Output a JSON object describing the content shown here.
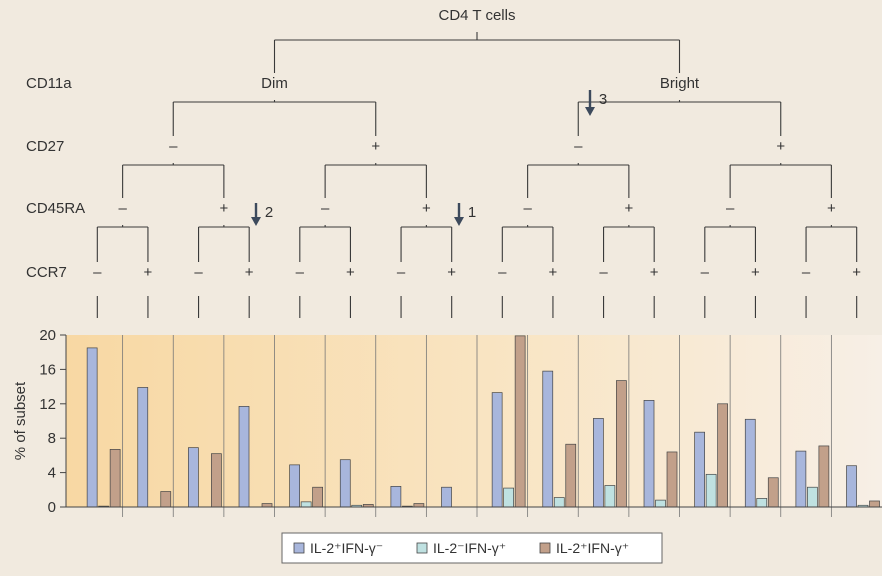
{
  "tree": {
    "root": "CD4 T cells",
    "levels": [
      {
        "name": "CD11a",
        "nodes": [
          "Dim",
          "Bright"
        ]
      },
      {
        "name": "CD27",
        "nodes": [
          "–",
          "+",
          "–",
          "+"
        ]
      },
      {
        "name": "CD45RA",
        "nodes": [
          "–",
          "+",
          "–",
          "+",
          "–",
          "+",
          "–",
          "+"
        ]
      },
      {
        "name": "CCR7",
        "nodes": [
          "–",
          "+",
          "–",
          "+",
          "–",
          "+",
          "–",
          "+",
          "–",
          "+",
          "–",
          "+",
          "–",
          "+",
          "–",
          "+"
        ]
      }
    ],
    "arrows": [
      "1",
      "2",
      "3"
    ]
  },
  "chart_data": {
    "type": "bar",
    "ylabel": "% of subset",
    "ylim": [
      0,
      20
    ],
    "yticks": [
      0,
      4,
      8,
      12,
      16,
      20
    ],
    "subsets": 16,
    "series": [
      {
        "name": "IL-2⁺IFN-γ⁻",
        "color": "#a8b6dc",
        "values": [
          18.5,
          13.9,
          6.9,
          11.7,
          4.9,
          5.5,
          2.4,
          2.3,
          13.3,
          15.8,
          10.3,
          12.4,
          8.7,
          10.2,
          6.5,
          4.8
        ]
      },
      {
        "name": "IL-2⁻IFN-γ⁺",
        "color": "#bfe1e1",
        "values": [
          0.1,
          0.0,
          0.0,
          0.0,
          0.6,
          0.2,
          0.1,
          0.0,
          2.2,
          1.1,
          2.5,
          0.8,
          3.8,
          1.0,
          2.3,
          0.2
        ]
      },
      {
        "name": "IL-2⁺IFN-γ⁺",
        "color": "#c2a08a",
        "values": [
          6.7,
          1.8,
          6.2,
          0.4,
          2.3,
          0.3,
          0.4,
          0.0,
          19.9,
          7.3,
          14.7,
          6.4,
          12.0,
          3.4,
          7.1,
          0.7
        ]
      }
    ],
    "grid": "vertical separators",
    "legend": "bottom-center"
  }
}
